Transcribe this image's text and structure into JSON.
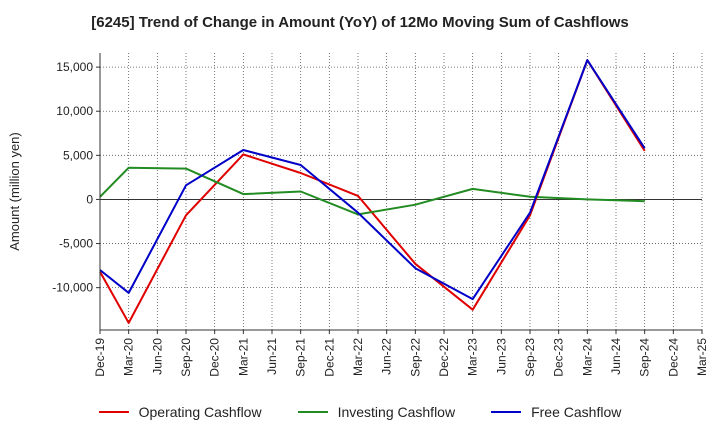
{
  "chart_data": {
    "type": "line",
    "title": "[6245]  Trend of Change in Amount (YoY) of 12Mo Moving Sum of Cashflows",
    "xlabel": "",
    "ylabel": "Amount (million yen)",
    "categories": [
      "Dec-19",
      "Mar-20",
      "Jun-20",
      "Sep-20",
      "Dec-20",
      "Mar-21",
      "Jun-21",
      "Sep-21",
      "Dec-21",
      "Mar-22",
      "Jun-22",
      "Sep-22",
      "Dec-22",
      "Mar-23",
      "Jun-23",
      "Sep-23",
      "Dec-23",
      "Mar-24",
      "Jun-24",
      "Sep-24",
      "Dec-24",
      "Mar-25"
    ],
    "ylim": [
      -14800,
      16600
    ],
    "yticks": [
      -10000,
      -5000,
      0,
      5000,
      10000,
      15000
    ],
    "ytick_labels": [
      "-10,000",
      "-5,000",
      "0",
      "5,000",
      "10,000",
      "15,000"
    ],
    "grid": true,
    "legend_position": "bottom",
    "series": [
      {
        "name": "Operating Cashflow",
        "color": "#e00000",
        "values": [
          -8200,
          -14000,
          null,
          -1800,
          null,
          5100,
          null,
          3000,
          null,
          400,
          null,
          -7300,
          null,
          -12500,
          null,
          -1800,
          null,
          15800,
          null,
          5500,
          null,
          null
        ]
      },
      {
        "name": "Investing Cashflow",
        "color": "#228b22",
        "values": [
          300,
          3600,
          null,
          3500,
          null,
          600,
          null,
          900,
          null,
          -1700,
          null,
          -600,
          null,
          1200,
          null,
          300,
          null,
          0,
          null,
          -200,
          null,
          null
        ]
      },
      {
        "name": "Free Cashflow",
        "color": "#0000c8",
        "values": [
          -8000,
          -10600,
          null,
          1600,
          null,
          5600,
          null,
          3900,
          null,
          -1500,
          null,
          -7800,
          null,
          -11300,
          null,
          -1500,
          null,
          15800,
          null,
          5800,
          null,
          null
        ]
      }
    ]
  }
}
